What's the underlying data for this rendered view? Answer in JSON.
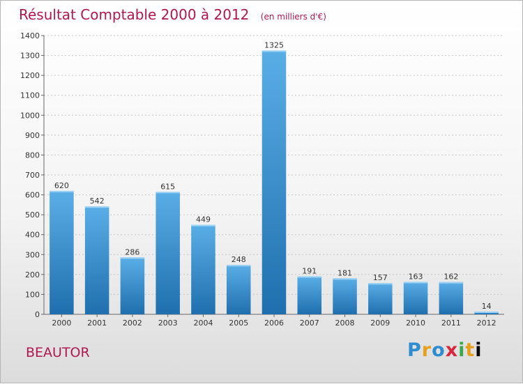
{
  "chart_data": {
    "type": "bar",
    "title": "Résultat Comptable 2000 à 2012",
    "subtitle": "(en milliers d'€)",
    "categories": [
      "2000",
      "2001",
      "2002",
      "2003",
      "2004",
      "2005",
      "2006",
      "2007",
      "2008",
      "2009",
      "2010",
      "2011",
      "2012"
    ],
    "values": [
      620,
      542,
      286,
      615,
      449,
      248,
      1325,
      191,
      181,
      157,
      163,
      162,
      14
    ],
    "ylim": [
      0,
      1400
    ],
    "yticks": [
      0,
      100,
      200,
      300,
      400,
      500,
      600,
      700,
      800,
      900,
      1000,
      1100,
      1200,
      1300,
      1400
    ],
    "xlabel": "",
    "ylabel": "",
    "grid": true
  },
  "commune": "BEAUTOR",
  "brand": {
    "letters": [
      "P",
      "r",
      "o",
      "x",
      "i",
      "t",
      "i"
    ]
  },
  "colors": {
    "title": "#b0174f",
    "bar_light": "#5aaee6",
    "bar_dark": "#1f6fae"
  }
}
